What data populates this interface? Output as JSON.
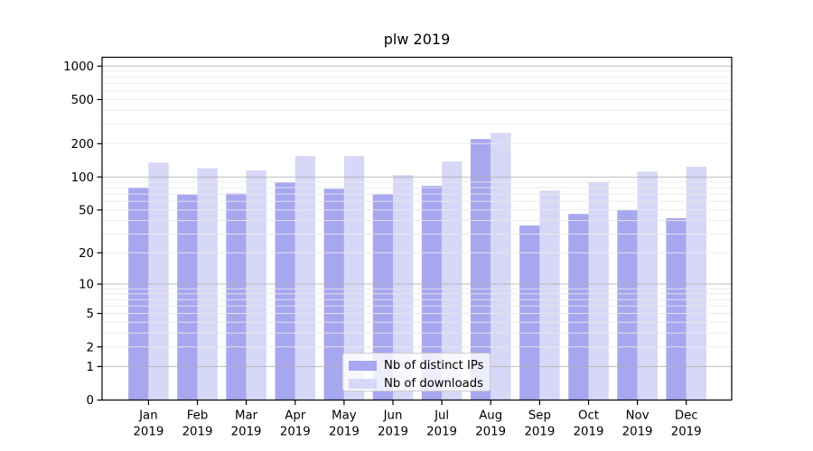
{
  "figure_title": "plw 2019",
  "legend": {
    "items": [
      {
        "label": "Nb of distinct IPs",
        "color": "#a7a7f0"
      },
      {
        "label": "Nb of downloads",
        "color": "#d7d7f7"
      }
    ]
  },
  "chart_data": {
    "type": "bar",
    "title": "plw 2019",
    "categories": [
      "Jan",
      "Feb",
      "Mar",
      "Apr",
      "May",
      "Jun",
      "Jul",
      "Aug",
      "Sep",
      "Oct",
      "Nov",
      "Dec"
    ],
    "year": "2019",
    "series": [
      {
        "name": "Nb of distinct IPs",
        "color": "#a7a7f0",
        "values": [
          80,
          69,
          71,
          89,
          78,
          70,
          83,
          220,
          36,
          46,
          50,
          42
        ]
      },
      {
        "name": "Nb of downloads",
        "color": "#d7d7f7",
        "values": [
          135,
          120,
          115,
          155,
          155,
          104,
          138,
          250,
          75,
          90,
          112,
          124
        ]
      }
    ],
    "xlabel": "",
    "ylabel": "",
    "yscale": "log1p",
    "ylim": [
      0,
      1200
    ],
    "yticks": [
      1000,
      500,
      200,
      100,
      50,
      20,
      10,
      5,
      2,
      1,
      0
    ],
    "grid": true,
    "grid_minor_color": "#e8e8e8",
    "grid_major_color": "#b0b0b0",
    "legend_position": "lower center"
  }
}
